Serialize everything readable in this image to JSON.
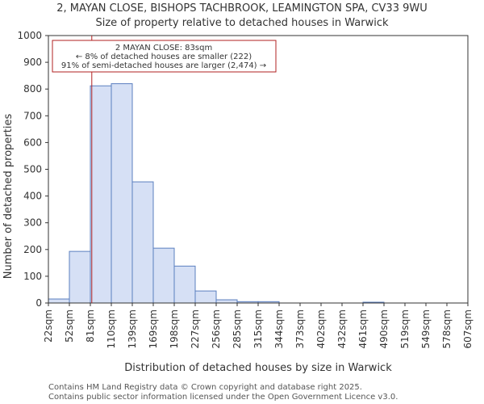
{
  "chart_data": {
    "type": "bar",
    "title": "2, MAYAN CLOSE, BISHOPS TACHBROOK, LEAMINGTON SPA, CV33 9WU",
    "subtitle": "Size of property relative to detached houses in Warwick",
    "xlabel": "Distribution of detached houses by size in Warwick",
    "ylabel": "Number of detached properties",
    "ylim": [
      0,
      1000
    ],
    "yticks": [
      0,
      100,
      200,
      300,
      400,
      500,
      600,
      700,
      800,
      900,
      1000
    ],
    "bin_edges": [
      "22sqm",
      "52sqm",
      "81sqm",
      "110sqm",
      "139sqm",
      "169sqm",
      "198sqm",
      "227sqm",
      "256sqm",
      "285sqm",
      "315sqm",
      "344sqm",
      "373sqm",
      "402sqm",
      "432sqm",
      "461sqm",
      "490sqm",
      "519sqm",
      "549sqm",
      "578sqm",
      "607sqm"
    ],
    "values": [
      15,
      193,
      812,
      820,
      453,
      205,
      138,
      45,
      12,
      5,
      5,
      0,
      0,
      0,
      0,
      3,
      0,
      0,
      0,
      0
    ],
    "bar_color": "#d6e0f5",
    "bar_edge_color": "#5b7fbf",
    "marker": {
      "value_sqm": 83,
      "color": "#b22222",
      "annotation_lines": [
        "2 MAYAN CLOSE: 83sqm",
        "← 8% of detached houses are smaller (222)",
        "91% of semi-detached houses are larger (2,474) →"
      ]
    }
  },
  "footer": {
    "line1": "Contains HM Land Registry data © Crown copyright and database right 2025.",
    "line2": "Contains public sector information licensed under the Open Government Licence v3.0."
  }
}
